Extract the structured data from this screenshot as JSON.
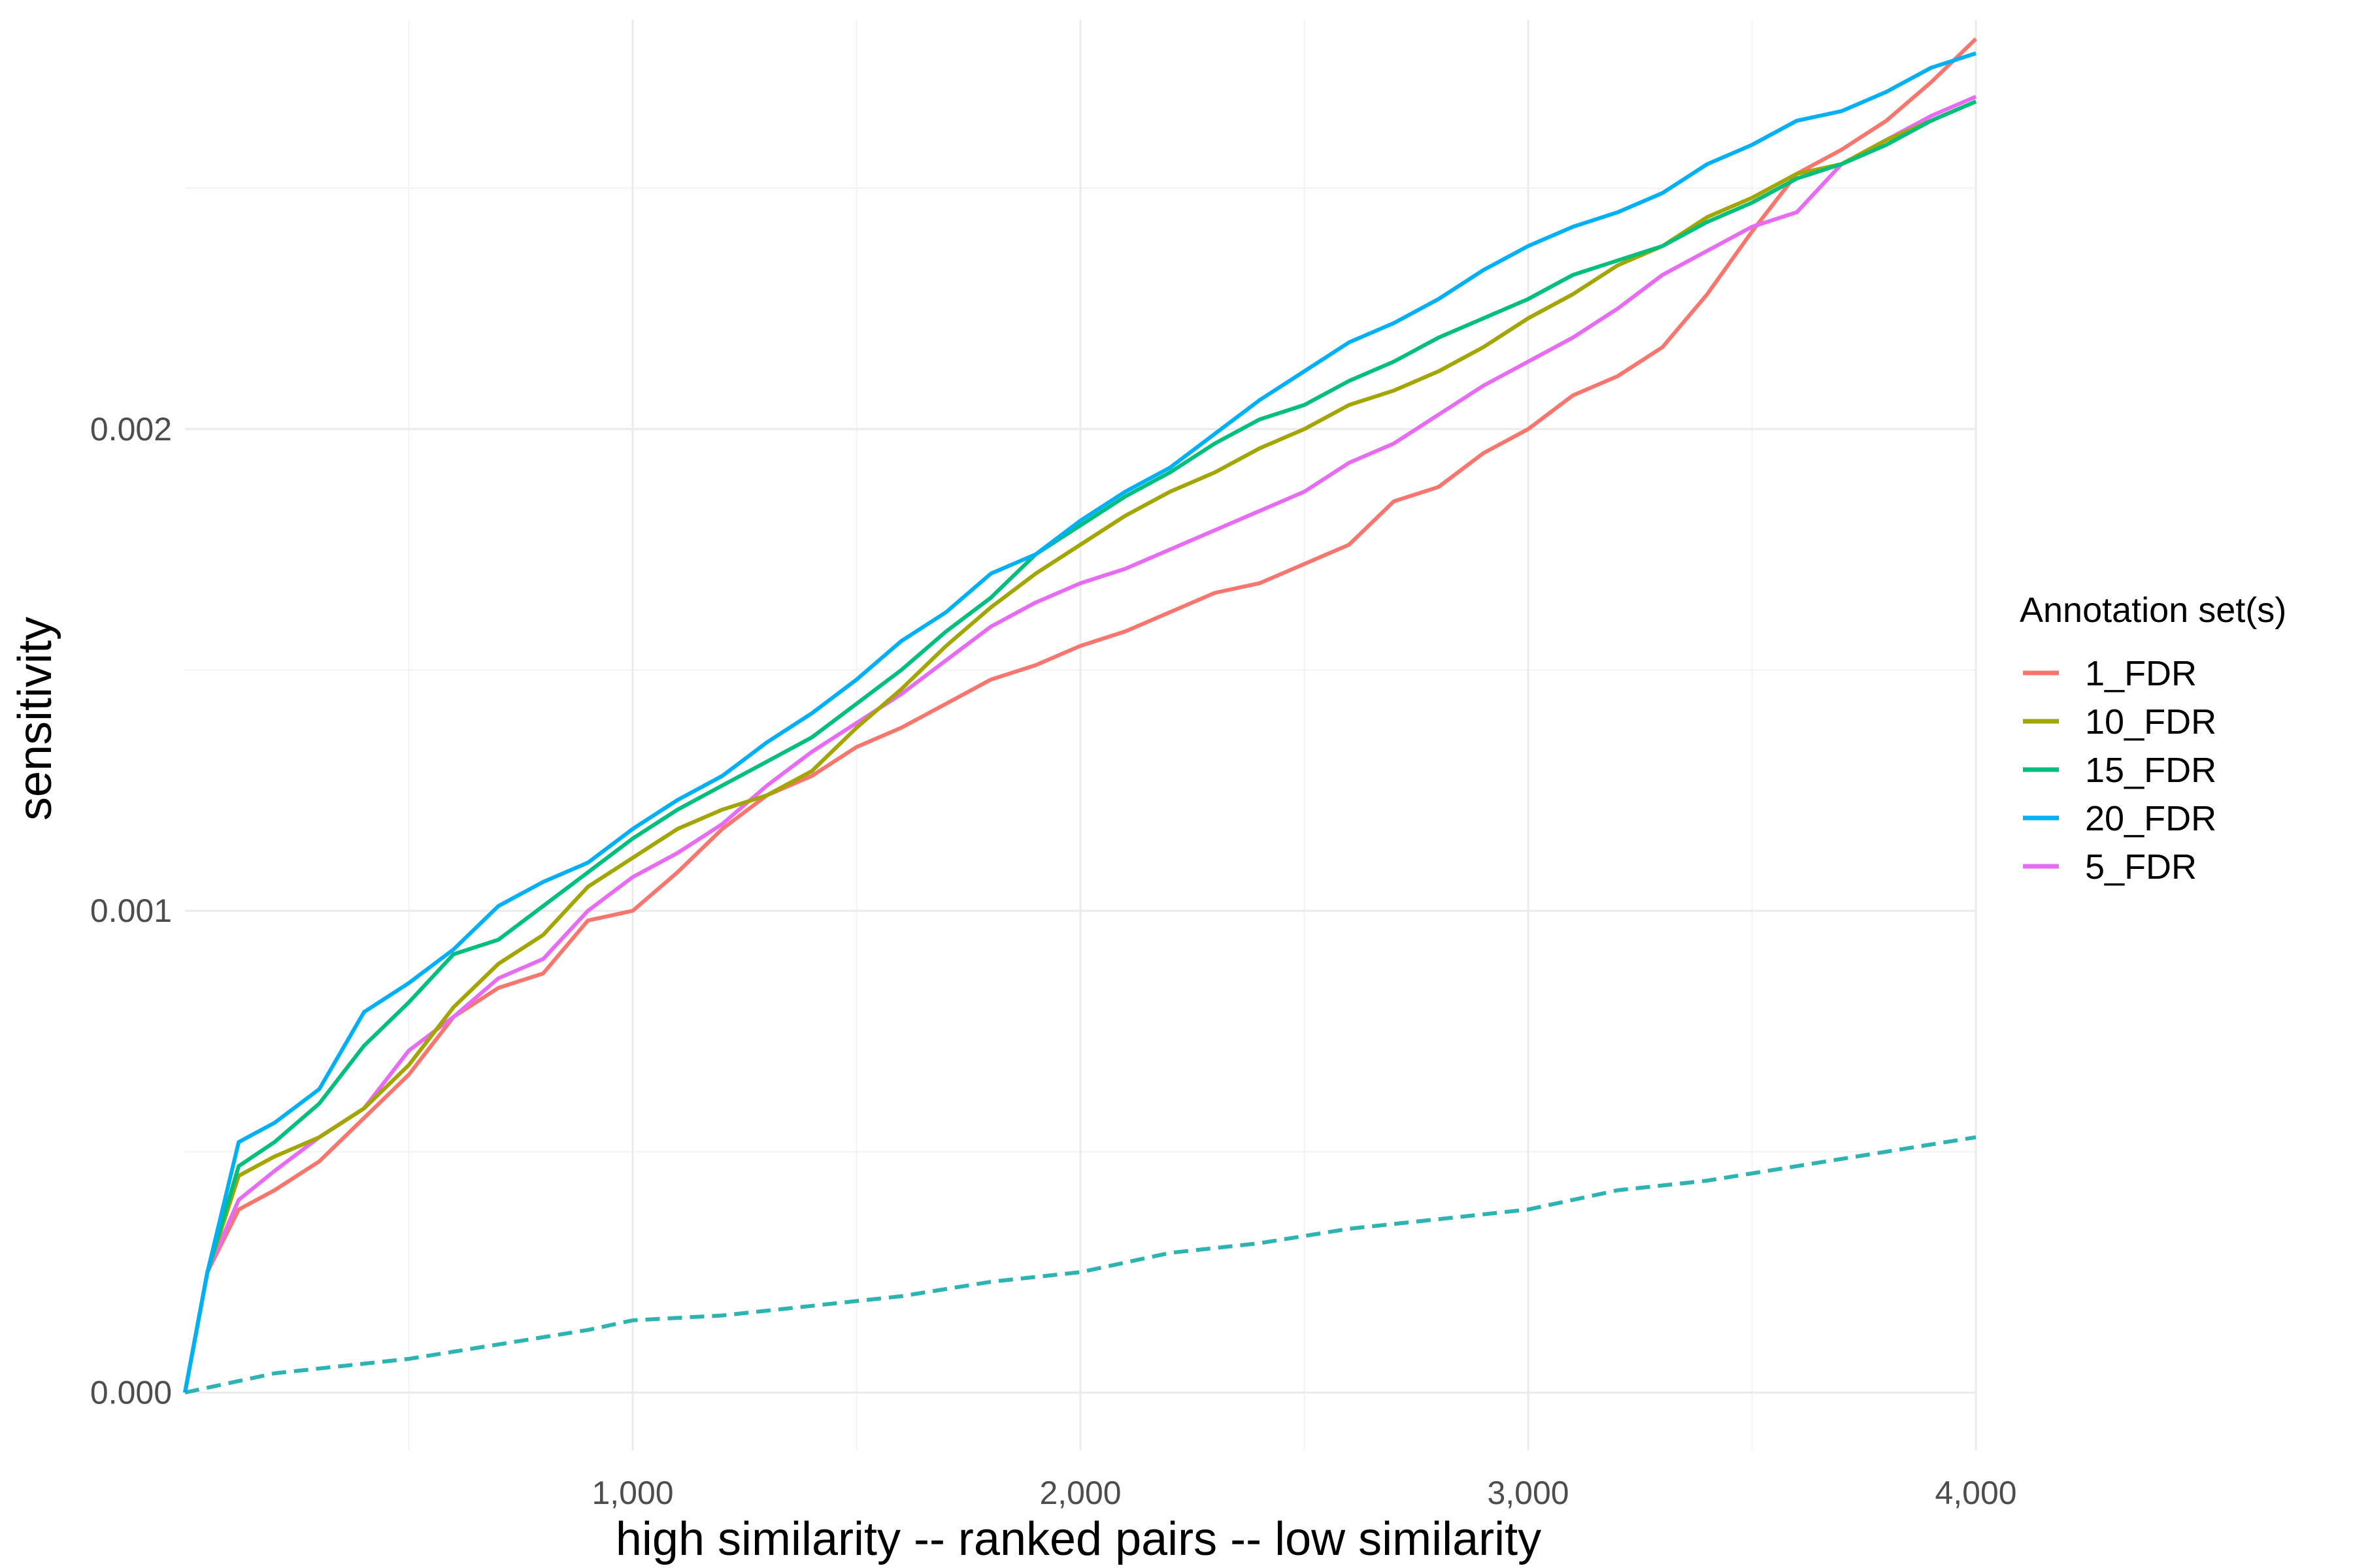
{
  "chart_data": {
    "type": "line",
    "title": "",
    "xlabel": "high similarity -- ranked pairs -- low similarity",
    "ylabel": "sensitivity",
    "xlim": [
      0,
      4000
    ],
    "ylim": [
      -0.00012,
      0.00285
    ],
    "x_ticks": [
      1000,
      2000,
      3000,
      4000
    ],
    "x_tick_labels": [
      "1,000",
      "2,000",
      "3,000",
      "4,000"
    ],
    "y_ticks": [
      0.0,
      0.001,
      0.002
    ],
    "y_tick_labels": [
      "0.000",
      "0.001",
      "0.002"
    ],
    "grid": true,
    "legend": {
      "title": "Annotation set(s)",
      "position": "right",
      "entries": [
        "1_FDR",
        "10_FDR",
        "15_FDR",
        "20_FDR",
        "5_FDR"
      ]
    },
    "series": [
      {
        "name": "1_FDR",
        "color": "#F8766D",
        "points": [
          [
            0,
            0
          ],
          [
            50,
            0.00025
          ],
          [
            120,
            0.00038
          ],
          [
            200,
            0.00042
          ],
          [
            300,
            0.00048
          ],
          [
            400,
            0.00057
          ],
          [
            500,
            0.00066
          ],
          [
            600,
            0.00078
          ],
          [
            700,
            0.00084
          ],
          [
            800,
            0.00087
          ],
          [
            900,
            0.00098
          ],
          [
            1000,
            0.001
          ],
          [
            1100,
            0.00108
          ],
          [
            1200,
            0.00117
          ],
          [
            1300,
            0.00124
          ],
          [
            1400,
            0.00128
          ],
          [
            1500,
            0.00134
          ],
          [
            1600,
            0.00138
          ],
          [
            1700,
            0.00143
          ],
          [
            1800,
            0.00148
          ],
          [
            1900,
            0.00151
          ],
          [
            2000,
            0.00155
          ],
          [
            2100,
            0.00158
          ],
          [
            2200,
            0.00162
          ],
          [
            2300,
            0.00166
          ],
          [
            2400,
            0.00168
          ],
          [
            2500,
            0.00172
          ],
          [
            2600,
            0.00176
          ],
          [
            2700,
            0.00185
          ],
          [
            2800,
            0.00188
          ],
          [
            2900,
            0.00195
          ],
          [
            3000,
            0.002
          ],
          [
            3100,
            0.00207
          ],
          [
            3200,
            0.00211
          ],
          [
            3300,
            0.00217
          ],
          [
            3400,
            0.00228
          ],
          [
            3500,
            0.00241
          ],
          [
            3600,
            0.00253
          ],
          [
            3700,
            0.00258
          ],
          [
            3800,
            0.00264
          ],
          [
            3900,
            0.00272
          ],
          [
            4000,
            0.00281
          ]
        ]
      },
      {
        "name": "10_FDR",
        "color": "#A3A500",
        "points": [
          [
            0,
            0
          ],
          [
            50,
            0.00025
          ],
          [
            120,
            0.00045
          ],
          [
            200,
            0.00049
          ],
          [
            300,
            0.00053
          ],
          [
            400,
            0.00059
          ],
          [
            500,
            0.00068
          ],
          [
            600,
            0.0008
          ],
          [
            700,
            0.00089
          ],
          [
            800,
            0.00095
          ],
          [
            900,
            0.00105
          ],
          [
            1000,
            0.00111
          ],
          [
            1100,
            0.00117
          ],
          [
            1200,
            0.00121
          ],
          [
            1300,
            0.00124
          ],
          [
            1400,
            0.00129
          ],
          [
            1500,
            0.00138
          ],
          [
            1600,
            0.00146
          ],
          [
            1700,
            0.00155
          ],
          [
            1800,
            0.00163
          ],
          [
            1900,
            0.0017
          ],
          [
            2000,
            0.00176
          ],
          [
            2100,
            0.00182
          ],
          [
            2200,
            0.00187
          ],
          [
            2300,
            0.00191
          ],
          [
            2400,
            0.00196
          ],
          [
            2500,
            0.002
          ],
          [
            2600,
            0.00205
          ],
          [
            2700,
            0.00208
          ],
          [
            2800,
            0.00212
          ],
          [
            2900,
            0.00217
          ],
          [
            3000,
            0.00223
          ],
          [
            3100,
            0.00228
          ],
          [
            3200,
            0.00234
          ],
          [
            3300,
            0.00238
          ],
          [
            3400,
            0.00244
          ],
          [
            3500,
            0.00248
          ],
          [
            3600,
            0.00253
          ],
          [
            3700,
            0.00255
          ],
          [
            3800,
            0.0026
          ],
          [
            3900,
            0.00264
          ],
          [
            4000,
            0.00268
          ]
        ]
      },
      {
        "name": "15_FDR",
        "color": "#00BF7D",
        "points": [
          [
            0,
            0
          ],
          [
            50,
            0.00025
          ],
          [
            120,
            0.00047
          ],
          [
            200,
            0.00052
          ],
          [
            300,
            0.0006
          ],
          [
            400,
            0.00072
          ],
          [
            500,
            0.00081
          ],
          [
            600,
            0.00091
          ],
          [
            700,
            0.00094
          ],
          [
            800,
            0.00101
          ],
          [
            900,
            0.00108
          ],
          [
            1000,
            0.00115
          ],
          [
            1100,
            0.00121
          ],
          [
            1200,
            0.00126
          ],
          [
            1300,
            0.00131
          ],
          [
            1400,
            0.00136
          ],
          [
            1500,
            0.00143
          ],
          [
            1600,
            0.0015
          ],
          [
            1700,
            0.00158
          ],
          [
            1800,
            0.00165
          ],
          [
            1900,
            0.00174
          ],
          [
            2000,
            0.0018
          ],
          [
            2100,
            0.00186
          ],
          [
            2200,
            0.00191
          ],
          [
            2300,
            0.00197
          ],
          [
            2400,
            0.00202
          ],
          [
            2500,
            0.00205
          ],
          [
            2600,
            0.0021
          ],
          [
            2700,
            0.00214
          ],
          [
            2800,
            0.00219
          ],
          [
            2900,
            0.00223
          ],
          [
            3000,
            0.00227
          ],
          [
            3100,
            0.00232
          ],
          [
            3200,
            0.00235
          ],
          [
            3300,
            0.00238
          ],
          [
            3400,
            0.00243
          ],
          [
            3500,
            0.00247
          ],
          [
            3600,
            0.00252
          ],
          [
            3700,
            0.00255
          ],
          [
            3800,
            0.00259
          ],
          [
            3900,
            0.00264
          ],
          [
            4000,
            0.00268
          ]
        ]
      },
      {
        "name": "20_FDR",
        "color": "#00B0F6",
        "points": [
          [
            0,
            0
          ],
          [
            50,
            0.00025
          ],
          [
            120,
            0.00052
          ],
          [
            200,
            0.00056
          ],
          [
            300,
            0.00063
          ],
          [
            400,
            0.00079
          ],
          [
            500,
            0.00085
          ],
          [
            600,
            0.00092
          ],
          [
            700,
            0.00101
          ],
          [
            800,
            0.00106
          ],
          [
            900,
            0.0011
          ],
          [
            1000,
            0.00117
          ],
          [
            1100,
            0.00123
          ],
          [
            1200,
            0.00128
          ],
          [
            1300,
            0.00135
          ],
          [
            1400,
            0.00141
          ],
          [
            1500,
            0.00148
          ],
          [
            1600,
            0.00156
          ],
          [
            1700,
            0.00162
          ],
          [
            1800,
            0.0017
          ],
          [
            1900,
            0.00174
          ],
          [
            2000,
            0.00181
          ],
          [
            2100,
            0.00187
          ],
          [
            2200,
            0.00192
          ],
          [
            2300,
            0.00199
          ],
          [
            2400,
            0.00206
          ],
          [
            2500,
            0.00212
          ],
          [
            2600,
            0.00218
          ],
          [
            2700,
            0.00222
          ],
          [
            2800,
            0.00227
          ],
          [
            2900,
            0.00233
          ],
          [
            3000,
            0.00238
          ],
          [
            3100,
            0.00242
          ],
          [
            3200,
            0.00245
          ],
          [
            3300,
            0.00249
          ],
          [
            3400,
            0.00255
          ],
          [
            3500,
            0.00259
          ],
          [
            3600,
            0.00264
          ],
          [
            3700,
            0.00266
          ],
          [
            3800,
            0.0027
          ],
          [
            3900,
            0.00275
          ],
          [
            4000,
            0.00278
          ]
        ]
      },
      {
        "name": "5_FDR",
        "color": "#E76BF3",
        "points": [
          [
            0,
            0
          ],
          [
            50,
            0.00025
          ],
          [
            120,
            0.0004
          ],
          [
            200,
            0.00046
          ],
          [
            300,
            0.00053
          ],
          [
            400,
            0.00059
          ],
          [
            500,
            0.00071
          ],
          [
            600,
            0.00078
          ],
          [
            700,
            0.00086
          ],
          [
            800,
            0.0009
          ],
          [
            900,
            0.001
          ],
          [
            1000,
            0.00107
          ],
          [
            1100,
            0.00112
          ],
          [
            1200,
            0.00118
          ],
          [
            1300,
            0.00126
          ],
          [
            1400,
            0.00133
          ],
          [
            1500,
            0.00139
          ],
          [
            1600,
            0.00145
          ],
          [
            1700,
            0.00152
          ],
          [
            1800,
            0.00159
          ],
          [
            1900,
            0.00164
          ],
          [
            2000,
            0.00168
          ],
          [
            2100,
            0.00171
          ],
          [
            2200,
            0.00175
          ],
          [
            2300,
            0.00179
          ],
          [
            2400,
            0.00183
          ],
          [
            2500,
            0.00187
          ],
          [
            2600,
            0.00193
          ],
          [
            2700,
            0.00197
          ],
          [
            2800,
            0.00203
          ],
          [
            2900,
            0.00209
          ],
          [
            3000,
            0.00214
          ],
          [
            3100,
            0.00219
          ],
          [
            3200,
            0.00225
          ],
          [
            3300,
            0.00232
          ],
          [
            3400,
            0.00237
          ],
          [
            3500,
            0.00242
          ],
          [
            3600,
            0.00245
          ],
          [
            3700,
            0.00255
          ],
          [
            3800,
            0.0026
          ],
          [
            3900,
            0.00265
          ],
          [
            4000,
            0.00269
          ]
        ]
      },
      {
        "name": "",
        "color": "#2EB3B3",
        "dashed": true,
        "points": [
          [
            0,
            0
          ],
          [
            200,
            4e-05
          ],
          [
            500,
            7e-05
          ],
          [
            700,
            0.0001
          ],
          [
            900,
            0.00013
          ],
          [
            1000,
            0.00015
          ],
          [
            1200,
            0.00016
          ],
          [
            1400,
            0.00018
          ],
          [
            1600,
            0.0002
          ],
          [
            1800,
            0.00023
          ],
          [
            2000,
            0.00025
          ],
          [
            2200,
            0.00029
          ],
          [
            2400,
            0.00031
          ],
          [
            2600,
            0.00034
          ],
          [
            2800,
            0.00036
          ],
          [
            3000,
            0.00038
          ],
          [
            3200,
            0.00042
          ],
          [
            3400,
            0.00044
          ],
          [
            3600,
            0.00047
          ],
          [
            3800,
            0.0005
          ],
          [
            4000,
            0.00053
          ]
        ]
      }
    ]
  }
}
